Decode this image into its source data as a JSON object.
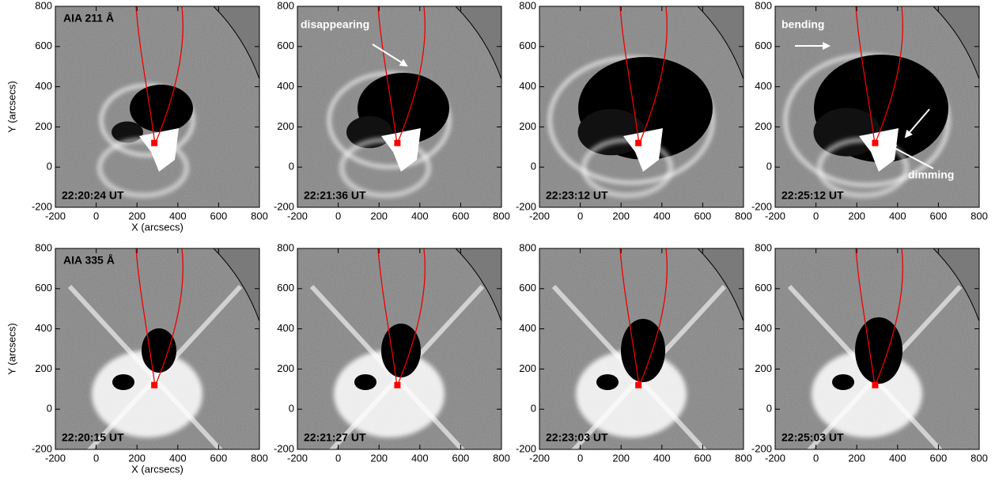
{
  "chart_data": [
    {
      "type": "image",
      "label": "AIA 211 Å",
      "time": "22:20:24 UT",
      "xlabel": "X (arcsecs)",
      "ylabel": "Y (arcsecs)",
      "xlim": [
        -200,
        800
      ],
      "ylim": [
        -200,
        800
      ],
      "xticks": [
        -200,
        0,
        200,
        400,
        600,
        800
      ],
      "yticks": [
        -200,
        0,
        200,
        400,
        600,
        800
      ],
      "points": {
        "x": [
          285
        ],
        "y": [
          120
        ],
        "color": "#ff0000"
      }
    },
    {
      "type": "image",
      "time": "22:21:36 UT",
      "annotations": [
        "disappearing"
      ],
      "xlim": [
        -200,
        800
      ],
      "ylim": [
        -200,
        800
      ],
      "xticks": [
        -200,
        0,
        200,
        400,
        600,
        800
      ],
      "yticks": [
        -200,
        0,
        200,
        400,
        600,
        800
      ],
      "points": {
        "x": [
          290
        ],
        "y": [
          120
        ],
        "color": "#ff0000"
      }
    },
    {
      "type": "image",
      "time": "22:23:12 UT",
      "xlim": [
        -200,
        800
      ],
      "ylim": [
        -200,
        800
      ],
      "xticks": [
        -200,
        0,
        200,
        400,
        600,
        800
      ],
      "yticks": [
        -200,
        0,
        200,
        400,
        600,
        800
      ],
      "points": {
        "x": [
          285
        ],
        "y": [
          120
        ],
        "color": "#ff0000"
      }
    },
    {
      "type": "image",
      "time": "22:25:12 UT",
      "annotations": [
        "bending",
        "dimming"
      ],
      "xlim": [
        -200,
        800
      ],
      "ylim": [
        -200,
        800
      ],
      "xticks": [
        -200,
        0,
        200,
        400,
        600,
        800
      ],
      "yticks": [
        -200,
        0,
        200,
        400,
        600,
        800
      ],
      "points": {
        "x": [
          290
        ],
        "y": [
          120
        ],
        "color": "#ff0000"
      }
    },
    {
      "type": "image",
      "label": "AIA 335 Å",
      "time": "22:20:15 UT",
      "xlabel": "X (arcsecs)",
      "ylabel": "Y (arcsecs)",
      "xlim": [
        -200,
        800
      ],
      "ylim": [
        -200,
        800
      ],
      "xticks": [
        -200,
        0,
        200,
        400,
        600,
        800
      ],
      "yticks": [
        -200,
        0,
        200,
        400,
        600,
        800
      ],
      "points": {
        "x": [
          285
        ],
        "y": [
          120
        ],
        "color": "#ff0000"
      }
    },
    {
      "type": "image",
      "time": "22:21:27 UT",
      "xlim": [
        -200,
        800
      ],
      "ylim": [
        -200,
        800
      ],
      "xticks": [
        -200,
        0,
        200,
        400,
        600,
        800
      ],
      "yticks": [
        -200,
        0,
        200,
        400,
        600,
        800
      ],
      "points": {
        "x": [
          290
        ],
        "y": [
          120
        ],
        "color": "#ff0000"
      }
    },
    {
      "type": "image",
      "time": "22:23:03 UT",
      "xlim": [
        -200,
        800
      ],
      "ylim": [
        -200,
        800
      ],
      "xticks": [
        -200,
        0,
        200,
        400,
        600,
        800
      ],
      "yticks": [
        -200,
        0,
        200,
        400,
        600,
        800
      ],
      "points": {
        "x": [
          285
        ],
        "y": [
          120
        ],
        "color": "#ff0000"
      }
    },
    {
      "type": "image",
      "time": "22:25:03 UT",
      "xlim": [
        -200,
        800
      ],
      "ylim": [
        -200,
        800
      ],
      "xticks": [
        -200,
        0,
        200,
        400,
        600,
        800
      ],
      "yticks": [
        -200,
        0,
        200,
        400,
        600,
        800
      ],
      "points": {
        "x": [
          290
        ],
        "y": [
          120
        ],
        "color": "#ff0000"
      }
    }
  ]
}
